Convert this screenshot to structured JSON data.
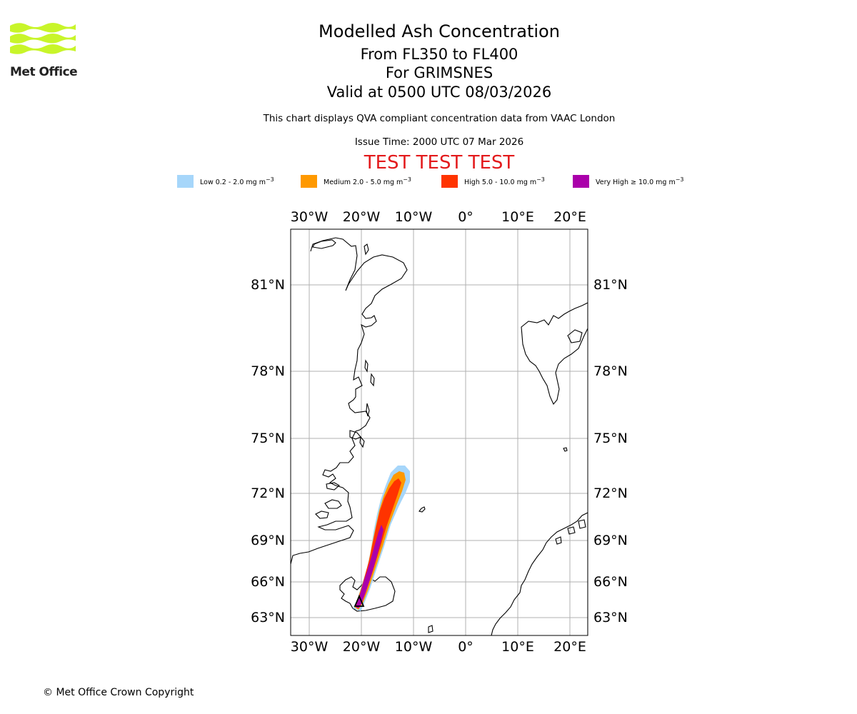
{
  "logo": {
    "text": "Met Office"
  },
  "title": {
    "line1": "Modelled Ash Concentration",
    "line2": "From FL350 to FL400",
    "line3": "For GRIMSNES",
    "line4": "Valid at 0500 UTC 08/03/2026"
  },
  "description": "This chart displays QVA compliant concentration data from VAAC London",
  "issue_time": "Issue Time: 2000 UTC 07 Mar 2026",
  "test_banner": "TEST TEST TEST",
  "legend": [
    {
      "label": "Low 0.2 - 2.0 mg m",
      "color": "#a6d6fa"
    },
    {
      "label": "Medium 2.0 - 5.0 mg m",
      "color": "#ff9900"
    },
    {
      "label": "High 5.0 - 10.0 mg m",
      "color": "#ff3300"
    },
    {
      "label": "Very High ≥ 10.0 mg m",
      "color": "#aa00aa"
    }
  ],
  "legend_unit_exp": "−3",
  "map": {
    "lon_ticks_top": [
      "30°W",
      "20°W",
      "10°W",
      "0°",
      "10°E",
      "20°E"
    ],
    "lon_ticks_bottom": [
      "30°W",
      "20°W",
      "10°W",
      "0°",
      "10°E",
      "20°E"
    ],
    "lat_ticks_left": [
      "81°N",
      "78°N",
      "75°N",
      "72°N",
      "69°N",
      "66°N",
      "63°N"
    ],
    "lat_ticks_right": [
      "81°N",
      "78°N",
      "75°N",
      "72°N",
      "69°N",
      "66°N",
      "63°N"
    ],
    "grid": true,
    "volcano_marker": "triangle",
    "colors": {
      "grid": "#b0b0b0",
      "coast": "#000000"
    }
  },
  "copyright": "© Met Office Crown Copyright"
}
